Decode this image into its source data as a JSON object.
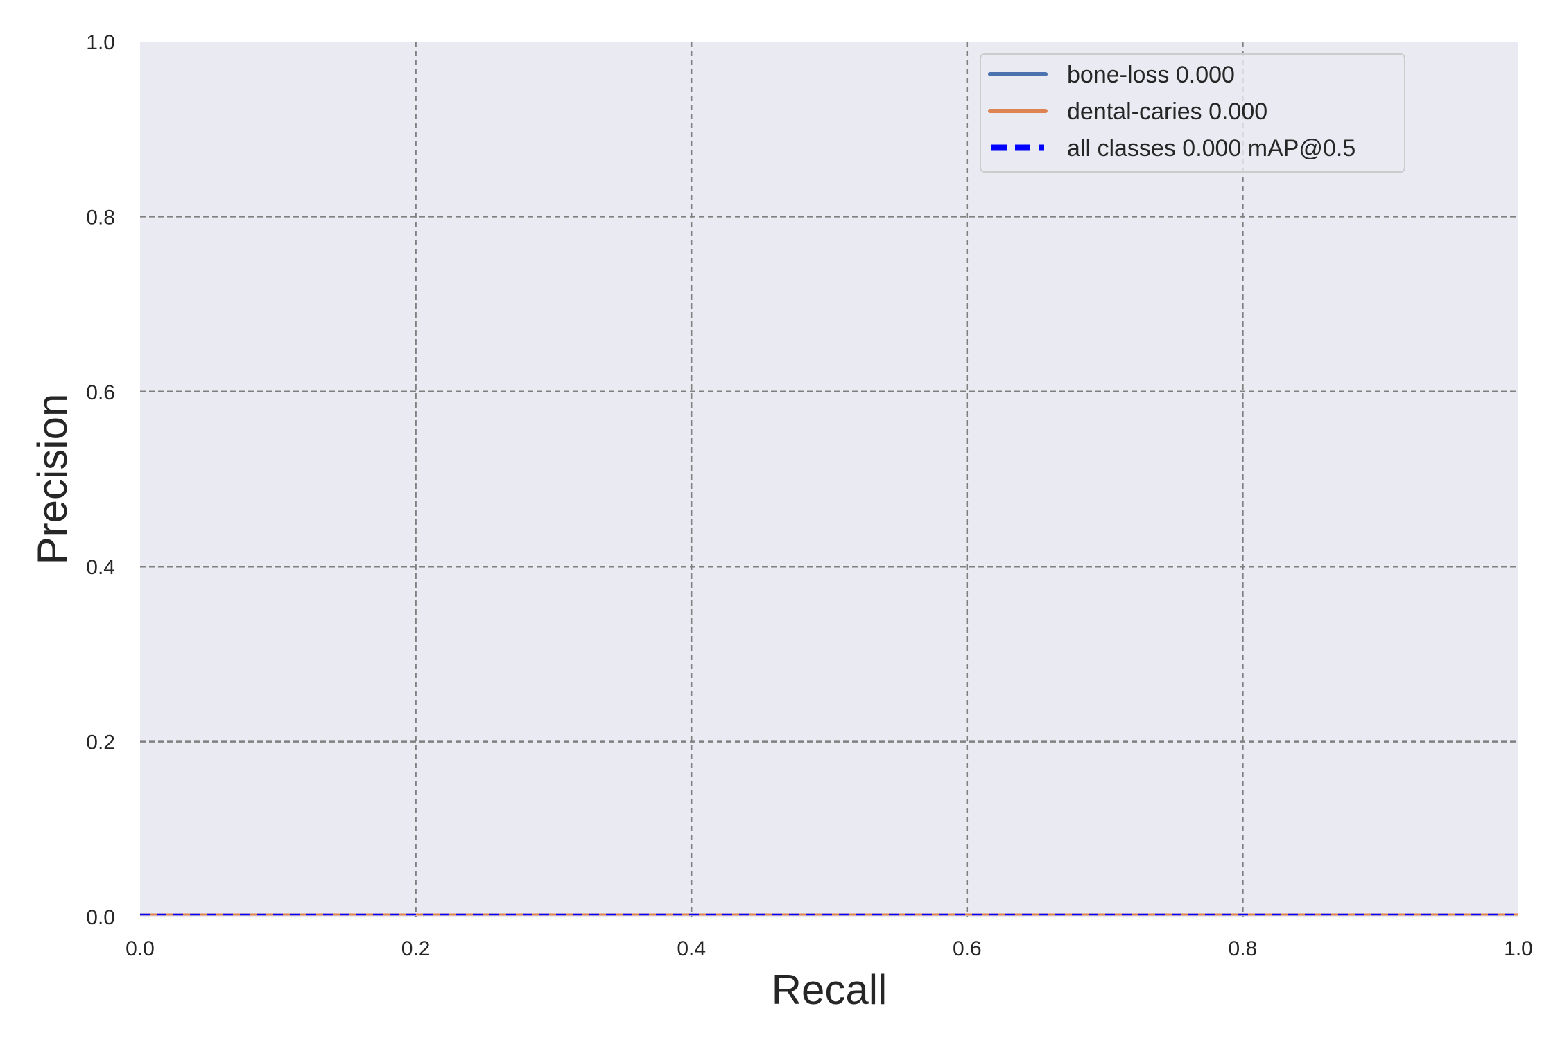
{
  "chart_data": {
    "type": "line",
    "title": "",
    "xlabel": "Recall",
    "ylabel": "Precision",
    "xlim": [
      0.0,
      1.0
    ],
    "ylim": [
      0.0,
      1.0
    ],
    "xticks": [
      "0.0",
      "0.2",
      "0.4",
      "0.6",
      "0.8",
      "1.0"
    ],
    "yticks": [
      "0.0",
      "0.2",
      "0.4",
      "0.6",
      "0.8",
      "1.0"
    ],
    "grid": true,
    "grid_style": "dashed",
    "legend_position": "top-right",
    "background": "#eaeaf2",
    "series": [
      {
        "name": "bone-loss 0.000",
        "color": "#4c72b0",
        "style": "solid",
        "x": [
          0.0,
          1.0
        ],
        "y": [
          0.0,
          0.0
        ]
      },
      {
        "name": "dental-caries 0.000",
        "color": "#dd8452",
        "style": "solid",
        "x": [
          0.0,
          1.0
        ],
        "y": [
          0.0,
          0.0
        ]
      },
      {
        "name": "all classes 0.000 mAP@0.5",
        "color": "#0000ff",
        "style": "dashed",
        "x": [
          0.0,
          1.0
        ],
        "y": [
          0.0,
          0.0
        ]
      }
    ]
  }
}
